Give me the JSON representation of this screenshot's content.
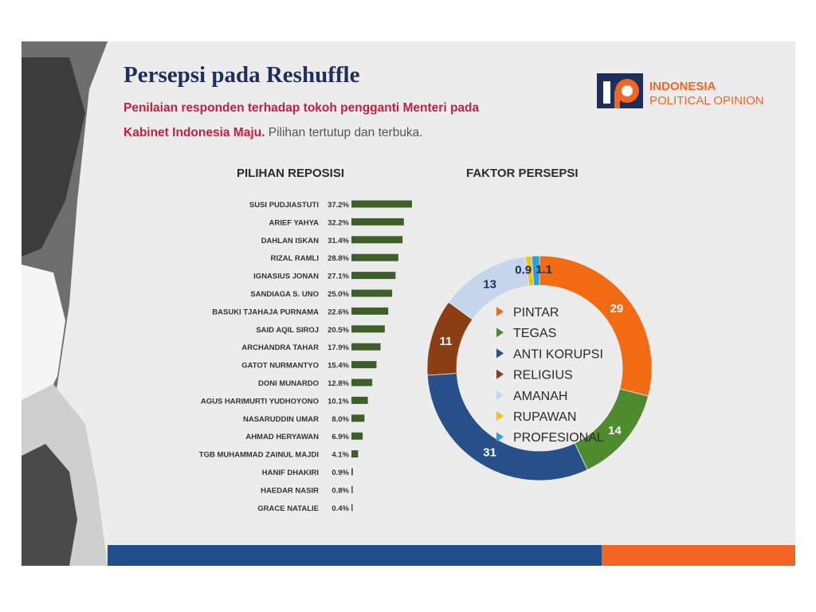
{
  "header": {
    "title": "Persepsi pada Reshuffle",
    "subtitle_line1": "Penilaian responden terhadap tokoh pengganti Menteri pada",
    "subtitle_line2_bold": "Kabinet Indonesia Maju.",
    "subtitle_line2_light": "Pilihan tertutup dan terbuka."
  },
  "logo": {
    "line1": "INDONESIA",
    "line2": "POLITICAL OPINION"
  },
  "colors": {
    "title": "#1f2f5c",
    "subtitle": "#c0213e",
    "bar": "#3f5f2a",
    "footer_blue": "#1f4e8c",
    "footer_orange": "#f26522"
  },
  "chart_data": [
    {
      "type": "bar",
      "orientation": "horizontal",
      "title": "PILIHAN REPOSISI",
      "categories": [
        "SUSI PUDJIASTUTI",
        "ARIEF YAHYA",
        "DAHLAN ISKAN",
        "RIZAL RAMLI",
        "IGNASIUS JONAN",
        "SANDIAGA S. UNO",
        "BASUKI TJAHAJA PURNAMA",
        "SAID AQIL SIROJ",
        "ARCHANDRA TAHAR",
        "GATOT NURMANTYO",
        "DONI MUNARDO",
        "AGUS HARIMURTI YUDHOYONO",
        "NASARUDDIN UMAR",
        "AHMAD HERYAWAN",
        "TGB MUHAMMAD ZAINUL MAJDI",
        "HANIF DHAKIRI",
        "HAEDAR NASIR",
        "GRACE NATALIE"
      ],
      "values": [
        37.2,
        32.2,
        31.4,
        28.8,
        27.1,
        25.0,
        22.6,
        20.5,
        17.9,
        15.4,
        12.8,
        10.1,
        8.0,
        6.9,
        4.1,
        0.9,
        0.8,
        0.4
      ],
      "value_labels": [
        "37.2%",
        "32.2%",
        "31.4%",
        "28.8%",
        "27.1%",
        "25.0%",
        "22.6%",
        "20.5%",
        "17.9%",
        "15.4%",
        "12.8%",
        "10.1%",
        "8.0%",
        "6.9%",
        "4.1%",
        "0.9%",
        "0.8%",
        "0.4%"
      ],
      "unit": "%"
    },
    {
      "type": "pie",
      "variant": "donut",
      "title": "FAKTOR PERSEPSI",
      "legend_position": "center",
      "slices": [
        {
          "label": "PINTAR",
          "value": 29,
          "value_label": "29",
          "color": "#f26a12"
        },
        {
          "label": "TEGAS",
          "value": 14,
          "value_label": "14",
          "color": "#4f8a2e"
        },
        {
          "label": "ANTI KORUPSI",
          "value": 31,
          "value_label": "31",
          "color": "#27508a"
        },
        {
          "label": "RELIGIUS",
          "value": 11,
          "value_label": "11",
          "color": "#8b3e14"
        },
        {
          "label": "AMANAH",
          "value": 13,
          "value_label": "13",
          "color": "#c5d6ec"
        },
        {
          "label": "RUPAWAN",
          "value": 0.9,
          "value_label": "0.9",
          "color": "#f0c21a"
        },
        {
          "label": "PROFESIONAL",
          "value": 1.1,
          "value_label": "1.1",
          "color": "#22a3dd"
        }
      ]
    }
  ]
}
